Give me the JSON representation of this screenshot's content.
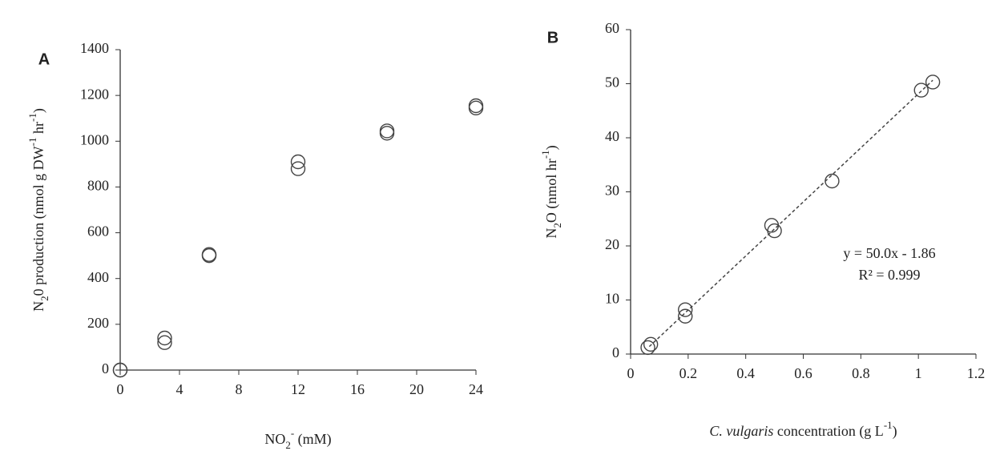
{
  "chart_data": [
    {
      "type": "scatter",
      "title": "A",
      "xlabel": [
        {
          "text": "NO"
        },
        {
          "text": "2",
          "style": "sub"
        },
        {
          "text": "-",
          "style": "sup"
        },
        {
          "text": " (mM)"
        }
      ],
      "ylabel": [
        {
          "text": "N"
        },
        {
          "text": "2",
          "style": "sub"
        },
        {
          "text": "0 production  (nmol  g DW"
        },
        {
          "text": "-1",
          "style": "sup"
        },
        {
          "text": " hr"
        },
        {
          "text": "-1",
          "style": "sup"
        },
        {
          "text": ")"
        }
      ],
      "x": [
        0,
        0,
        3,
        3,
        6,
        6,
        12,
        12,
        18,
        18,
        24,
        24
      ],
      "values": [
        0,
        0,
        140,
        120,
        505,
        500,
        910,
        880,
        1045,
        1035,
        1155,
        1145
      ],
      "color": "#444444",
      "xlim": [
        0,
        24
      ],
      "xticks": [
        0,
        4,
        8,
        12,
        16,
        20,
        24
      ],
      "ylim": [
        0,
        1400
      ],
      "yticks": [
        0,
        200,
        400,
        600,
        800,
        1000,
        1200,
        1400
      ]
    },
    {
      "type": "scatter",
      "title": "B",
      "xlabel": [
        {
          "text": "C. vulgaris",
          "style": "italic"
        },
        {
          "text": " concentration  (g  L"
        },
        {
          "text": "-1",
          "style": "sup"
        },
        {
          "text": ")"
        }
      ],
      "ylabel": [
        {
          "text": "N"
        },
        {
          "text": "2",
          "style": "sub"
        },
        {
          "text": "O  (nmol  hr"
        },
        {
          "text": "-1",
          "style": "sup"
        },
        {
          "text": ")"
        }
      ],
      "x": [
        0.06,
        0.07,
        0.19,
        0.19,
        0.49,
        0.5,
        0.7,
        1.01,
        1.05
      ],
      "values": [
        1.2,
        1.8,
        8.2,
        7,
        23.8,
        22.8,
        32,
        48.8,
        50.3
      ],
      "color": "#444444",
      "trendline": {
        "slope": 50.0,
        "intercept": -1.86,
        "x": [
          0.065,
          1.05
        ],
        "color": "#444444"
      },
      "annotations": [
        "y = 50.0x - 1.86",
        "R² = 0.999"
      ],
      "xlim": [
        0,
        1.2
      ],
      "xticks": [
        0,
        0.2,
        0.4,
        0.6,
        0.8,
        1,
        1.2
      ],
      "ylim": [
        0,
        60
      ],
      "yticks": [
        0,
        10,
        20,
        30,
        40,
        50,
        60
      ]
    }
  ]
}
